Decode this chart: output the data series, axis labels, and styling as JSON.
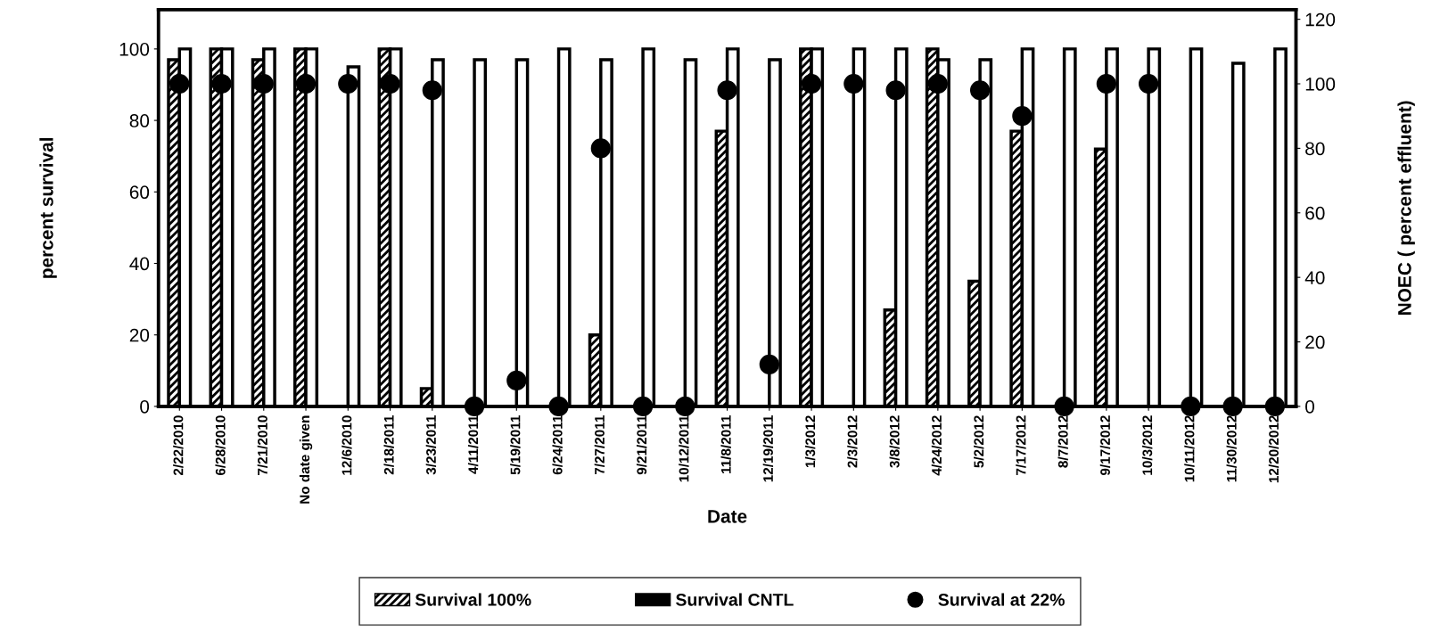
{
  "chart_data": {
    "type": "bar",
    "xlabel": "Date",
    "ylabel": "percent survival",
    "y2label": "NOEC ( percent effluent)",
    "categories": [
      "2/22/2010",
      "6/28/2010",
      "7/21/2010",
      "No date given",
      "12/6/2010",
      "2/18/2011",
      "3/23/2011",
      "4/11/2011",
      "5/19/2011",
      "6/24/2011",
      "7/27/2011",
      "9/21/2011",
      "10/12/2011",
      "11/8/2011",
      "12/19/2011",
      "1/3/2012",
      "2/3/2012",
      "3/8/2012",
      "4/24/2012",
      "5/2/2012",
      "7/17/2012",
      "8/7/2012",
      "9/17/2012",
      "10/3/2012",
      "10/11/2012",
      "11/30/2012",
      "12/20/2012"
    ],
    "series": [
      {
        "name": "Survival 100%",
        "color": "#000000",
        "values": [
          97,
          100,
          97,
          100,
          0,
          100,
          5,
          0,
          0,
          0,
          20,
          0,
          0,
          77,
          0,
          100,
          0,
          27,
          100,
          35,
          77,
          0,
          72,
          0,
          0,
          0,
          0
        ]
      },
      {
        "name": "Survival CNTL",
        "color": "#000000",
        "values": [
          100,
          100,
          100,
          100,
          95,
          100,
          97,
          97,
          97,
          100,
          97,
          100,
          97,
          100,
          97,
          100,
          100,
          100,
          97,
          97,
          100,
          100,
          100,
          100,
          100,
          96,
          100
        ]
      },
      {
        "name": "Survival at 22%",
        "type": "scatter",
        "axis": "y2",
        "color": "#000000",
        "values": [
          100,
          100,
          100,
          100,
          100,
          100,
          98,
          0,
          8,
          0,
          80,
          0,
          0,
          98,
          13,
          100,
          100,
          98,
          100,
          98,
          90,
          0,
          100,
          100,
          0,
          0,
          0
        ]
      }
    ],
    "ylim": [
      0,
      111
    ],
    "yticks": [
      0,
      20,
      40,
      60,
      80,
      100
    ],
    "y2lim": [
      0,
      123
    ],
    "y2ticks": [
      0,
      20,
      40,
      60,
      80,
      100,
      120
    ],
    "marker": "circle",
    "grid": false,
    "legend": "bottom"
  }
}
